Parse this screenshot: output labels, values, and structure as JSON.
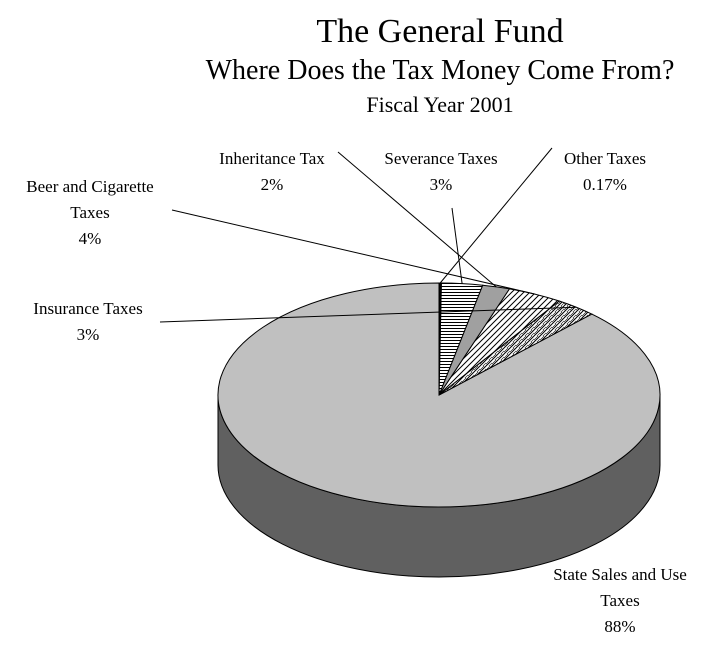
{
  "chart_data": {
    "type": "pie",
    "title": "The General Fund",
    "subtitle": "Where Does the Tax Money Come From?",
    "period": "Fiscal Year 2001",
    "slices": [
      {
        "name": "State Sales and Use Taxes",
        "label_lines": [
          "State Sales and Use",
          "Taxes"
        ],
        "value": 88,
        "value_label": "88%",
        "fill": "#c0c0c0",
        "pattern": "solid"
      },
      {
        "name": "Insurance Taxes",
        "label_lines": [
          "Insurance Taxes"
        ],
        "value": 3,
        "value_label": "3%",
        "fill": "#ffffff",
        "pattern": "diagonal-dense"
      },
      {
        "name": "Beer and Cigarette Taxes",
        "label_lines": [
          "Beer and Cigarette",
          "Taxes"
        ],
        "value": 4,
        "value_label": "4%",
        "fill": "#ffffff",
        "pattern": "diagonal"
      },
      {
        "name": "Inheritance Tax",
        "label_lines": [
          "Inheritance Tax"
        ],
        "value": 2,
        "value_label": "2%",
        "fill": "#a0a0a0",
        "pattern": "solid"
      },
      {
        "name": "Severance Taxes",
        "label_lines": [
          "Severance Taxes"
        ],
        "value": 3,
        "value_label": "3%",
        "fill": "#ffffff",
        "pattern": "horizontal"
      },
      {
        "name": "Other Taxes",
        "label_lines": [
          "Other Taxes"
        ],
        "value": 0.17,
        "value_label": "0.17%",
        "fill": "#000000",
        "pattern": "solid"
      }
    ],
    "style": {
      "edge_color": "#000000",
      "side_color": "#606060",
      "three_d": true,
      "leader_lines": true
    }
  }
}
